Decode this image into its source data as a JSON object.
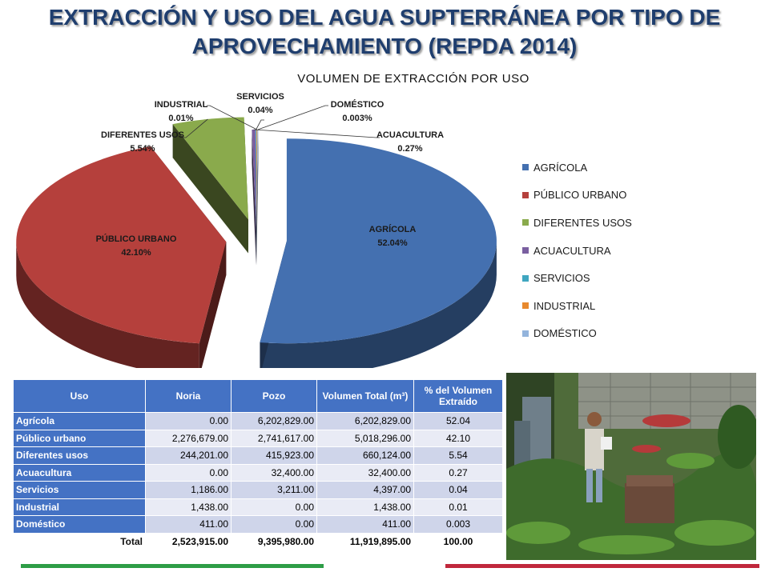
{
  "title": "EXTRACCIÓN Y USO DEL AGUA SUPTERRÁNEA POR TIPO DE APROVECHAMIENTO (REPDA 2014)",
  "chart_data": {
    "type": "pie",
    "title": "VOLUMEN DE EXTRACCIÓN POR USO",
    "categories": [
      "AGRÍCOLA",
      "PÚBLICO URBANO",
      "DIFERENTES USOS",
      "ACUACULTURA",
      "SERVICIOS",
      "INDUSTRIAL",
      "DOMÉSTICO"
    ],
    "values": [
      52.04,
      42.1,
      5.54,
      0.27,
      0.04,
      0.01,
      0.003
    ],
    "value_labels": [
      "52.04%",
      "42.10%",
      "5.54%",
      "0.27%",
      "0.04%",
      "0.01%",
      "0.003%"
    ],
    "colors": [
      "#4470b0",
      "#b5403c",
      "#8aaa4c",
      "#7a5fa0",
      "#3fa6c0",
      "#e8892e",
      "#93b4dc"
    ],
    "exploded": true,
    "legend_position": "right"
  },
  "table": {
    "headers": [
      "Uso",
      "Noria",
      "Pozo",
      "Volumen Total (m³)",
      "% del Volumen Extraído"
    ],
    "rows": [
      [
        "Agrícola",
        "0.00",
        "6,202,829.00",
        "6,202,829.00",
        "52.04"
      ],
      [
        "Público urbano",
        "2,276,679.00",
        "2,741,617.00",
        "5,018,296.00",
        "42.10"
      ],
      [
        "Diferentes usos",
        "244,201.00",
        "415,923.00",
        "660,124.00",
        "5.54"
      ],
      [
        "Acuacultura",
        "0.00",
        "32,400.00",
        "32,400.00",
        "0.27"
      ],
      [
        "Servicios",
        "1,186.00",
        "3,211.00",
        "4,397.00",
        "0.04"
      ],
      [
        "Industrial",
        "1,438.00",
        "0.00",
        "1,438.00",
        "0.01"
      ],
      [
        "Doméstico",
        "411.00",
        "0.00",
        "411.00",
        "0.003"
      ]
    ],
    "total": [
      "Total",
      "2,523,915.00",
      "9,395,980.00",
      "11,919,895.00",
      "100.00"
    ]
  },
  "accent_colors": {
    "green_bar": "#2e9d47",
    "red_bar": "#c0283c"
  }
}
